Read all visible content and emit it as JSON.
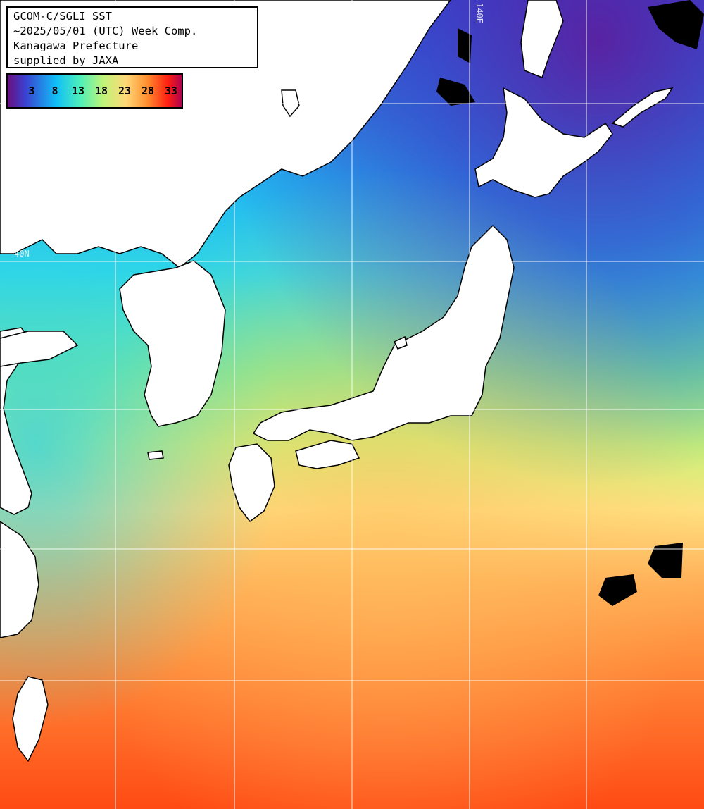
{
  "info": {
    "line1": "GCOM-C/SGLI SST",
    "line2": "~2025/05/01 (UTC) Week Comp.",
    "line3": "Kanagawa Prefecture",
    "line4": "supplied by JAXA"
  },
  "colorbar": {
    "ticks": [
      "3",
      "8",
      "13",
      "18",
      "23",
      "28",
      "33"
    ],
    "colors": [
      "#5a1a8c",
      "#3a48d8",
      "#16c8f0",
      "#58f0b0",
      "#c8f470",
      "#ffe07a",
      "#ff9a3a",
      "#ff3a1a",
      "#c80030",
      "#8a0050"
    ]
  },
  "gridlines": {
    "lat_label": "40N",
    "lon_label": "140E"
  },
  "colors": {
    "cold": "#2a3cc8",
    "cool": "#20d8f0",
    "mild": "#70f09a",
    "warm": "#ffd070",
    "hot": "#ff5a20",
    "land": "#ffffff",
    "cloud": "#000000"
  }
}
